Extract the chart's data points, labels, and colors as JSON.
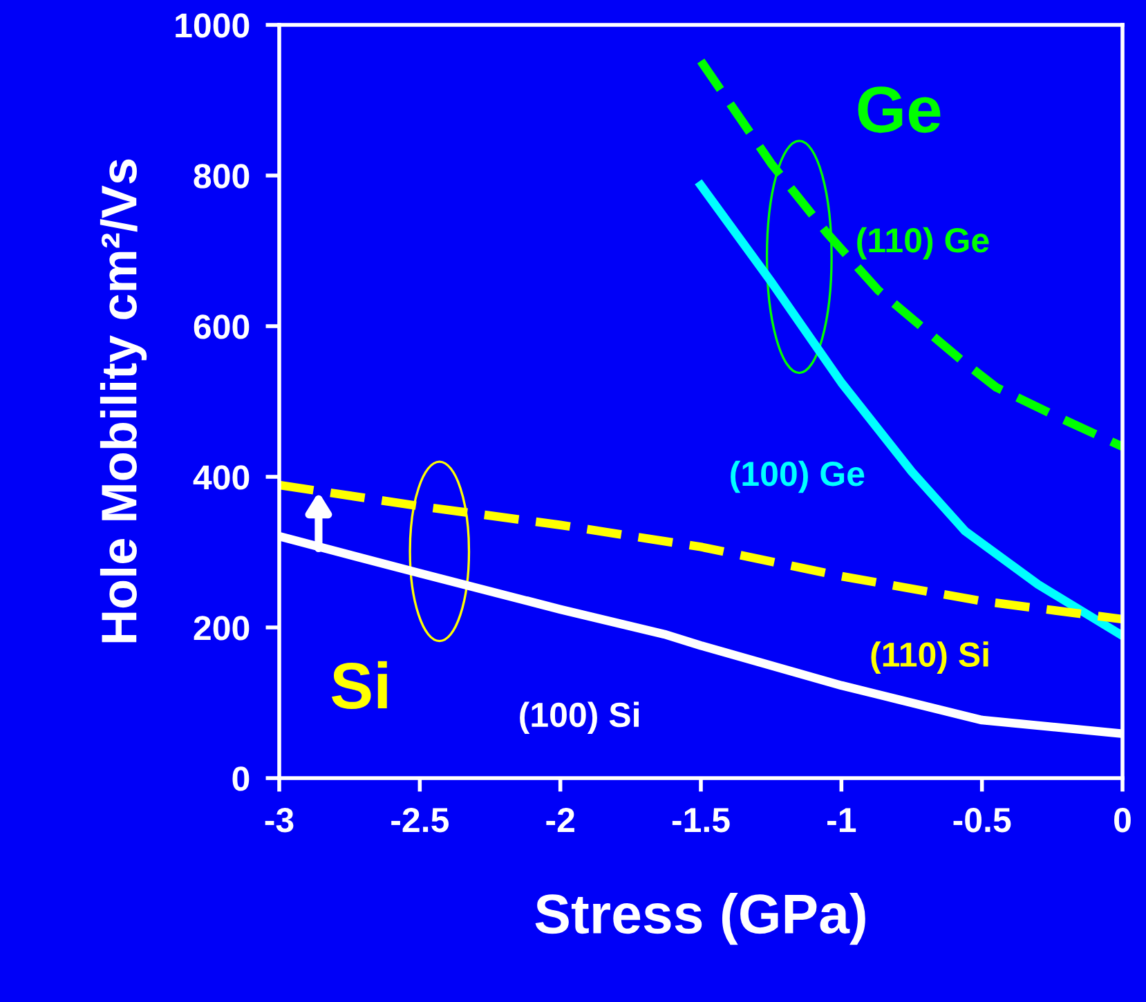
{
  "chart_data": {
    "type": "line",
    "xlabel": "Stress (GPa)",
    "ylabel": "Hole Mobility cm²/Vs",
    "xlim": [
      -3,
      0
    ],
    "ylim": [
      0,
      1000
    ],
    "xticks": [
      -3,
      -2.5,
      -2,
      -1.5,
      -1,
      -0.5,
      0
    ],
    "yticks": [
      0,
      200,
      400,
      600,
      800,
      1000
    ],
    "grid": false,
    "legend": false,
    "marker": "none",
    "annotations": [
      "Ge",
      "Si"
    ],
    "series": [
      {
        "name": "(110) Ge",
        "color": "#00ff00",
        "line_style": "dashed",
        "x": [
          -1.5,
          -1.25,
          -1.05,
          -0.87,
          -0.57,
          -0.45,
          -0.25,
          0
        ],
        "values": [
          952,
          816,
          723,
          648,
          554,
          519,
          483,
          440
        ]
      },
      {
        "name": "(100) Ge",
        "color": "#00ffff",
        "line_style": "solid",
        "x": [
          -1.5,
          -1.25,
          -1.0,
          -0.75,
          -0.56,
          -0.3,
          0
        ],
        "values": [
          787,
          659,
          525,
          407,
          328,
          257,
          189
        ]
      },
      {
        "name": "(110) Si",
        "color": "#ffff00",
        "line_style": "dashed",
        "x": [
          -3,
          -2.5,
          -2,
          -1.5,
          -1,
          -0.5,
          0
        ],
        "values": [
          389,
          361,
          336,
          307,
          268,
          235,
          211
        ]
      },
      {
        "name": "(100) Si",
        "color": "#ffffff",
        "line_style": "solid",
        "x": [
          -3,
          -2.5,
          -2,
          -1.63,
          -1.5,
          -1,
          -0.5,
          0
        ],
        "values": [
          321,
          272,
          224,
          191,
          176,
          123,
          77,
          59
        ]
      }
    ]
  }
}
